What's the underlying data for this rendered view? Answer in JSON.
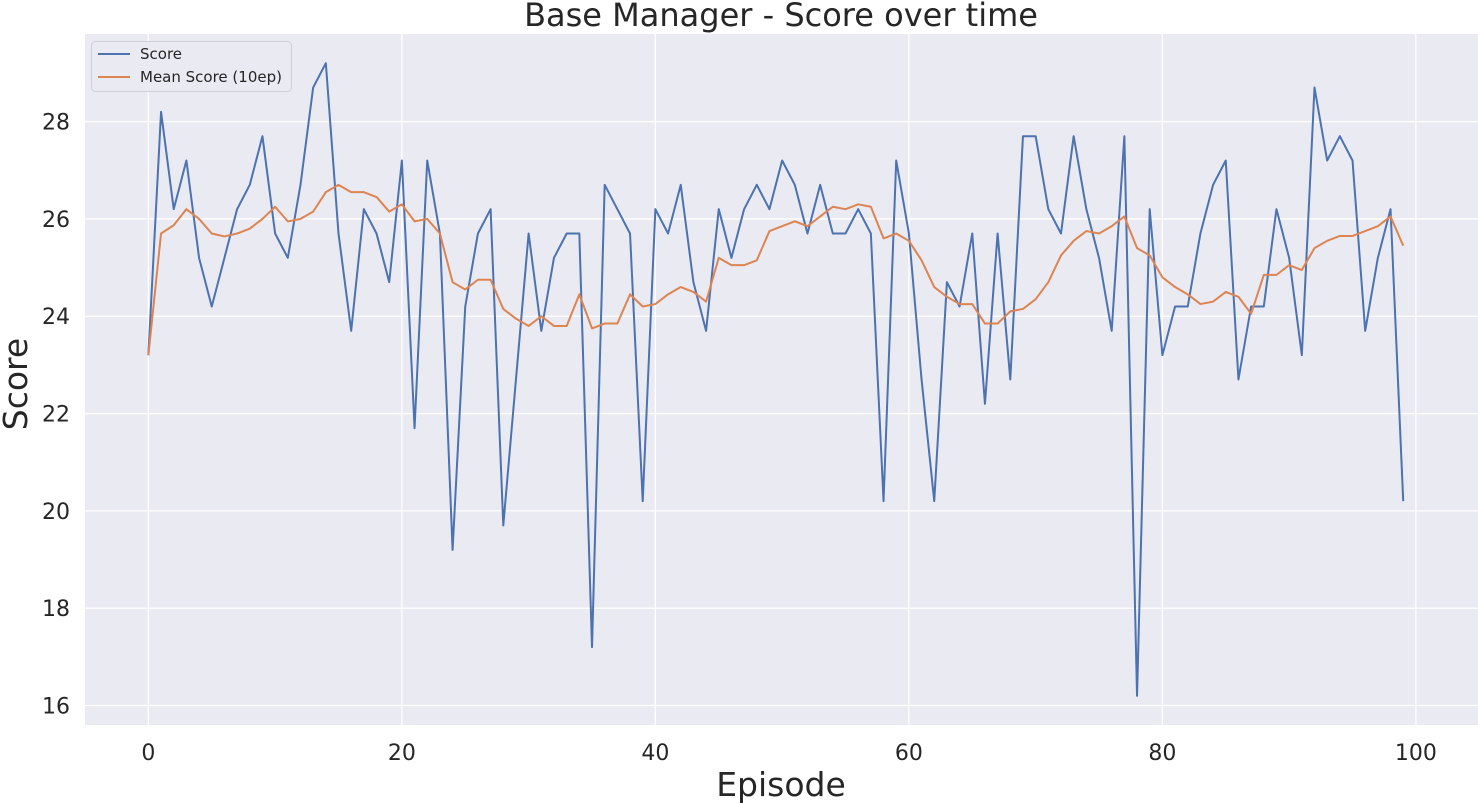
{
  "chart_data": {
    "type": "line",
    "title": "Base Manager - Score over time",
    "xlabel": "Episode",
    "ylabel": "Score",
    "xlim": [
      -5,
      104.9
    ],
    "ylim": [
      15.6,
      29.8
    ],
    "xticks": [
      0,
      20,
      40,
      60,
      80,
      100
    ],
    "yticks": [
      16,
      18,
      20,
      22,
      24,
      26,
      28
    ],
    "grid": true,
    "legend_position": "top-left",
    "background_color": "#EAEAF2",
    "grid_color": "#FFFFFF",
    "x": [
      0,
      1,
      2,
      3,
      4,
      5,
      6,
      7,
      8,
      9,
      10,
      11,
      12,
      13,
      14,
      15,
      16,
      17,
      18,
      19,
      20,
      21,
      22,
      23,
      24,
      25,
      26,
      27,
      28,
      29,
      30,
      31,
      32,
      33,
      34,
      35,
      36,
      37,
      38,
      39,
      40,
      41,
      42,
      43,
      44,
      45,
      46,
      47,
      48,
      49,
      50,
      51,
      52,
      53,
      54,
      55,
      56,
      57,
      58,
      59,
      60,
      61,
      62,
      63,
      64,
      65,
      66,
      67,
      68,
      69,
      70,
      71,
      72,
      73,
      74,
      75,
      76,
      77,
      78,
      79,
      80,
      81,
      82,
      83,
      84,
      85,
      86,
      87,
      88,
      89,
      90,
      91,
      92,
      93,
      94,
      95,
      96,
      97,
      98,
      99
    ],
    "series": [
      {
        "name": "Score",
        "color": "#4C72B0",
        "values": [
          23.2,
          28.2,
          26.2,
          27.2,
          25.2,
          24.2,
          25.2,
          26.2,
          26.7,
          27.7,
          25.7,
          25.2,
          26.7,
          28.7,
          29.2,
          25.7,
          23.7,
          26.2,
          25.7,
          24.7,
          27.2,
          21.7,
          27.2,
          25.7,
          19.2,
          24.2,
          25.7,
          26.2,
          19.7,
          22.7,
          25.7,
          23.7,
          25.2,
          25.7,
          25.7,
          17.2,
          26.7,
          26.2,
          25.7,
          20.2,
          26.2,
          25.7,
          26.7,
          24.7,
          23.7,
          26.2,
          25.2,
          26.2,
          26.7,
          26.2,
          27.2,
          26.7,
          25.7,
          26.7,
          25.7,
          25.7,
          26.2,
          25.7,
          20.2,
          27.2,
          25.7,
          22.7,
          20.2,
          24.7,
          24.2,
          25.7,
          22.2,
          25.7,
          22.7,
          27.7,
          27.7,
          26.2,
          25.7,
          27.7,
          26.2,
          25.2,
          23.7,
          27.7,
          16.2,
          26.2,
          23.2,
          24.2,
          24.2,
          25.7,
          26.7,
          27.2,
          22.7,
          24.2,
          24.2,
          26.2,
          25.2,
          23.2,
          28.7,
          27.2,
          27.7,
          27.2,
          23.7,
          25.2,
          26.2,
          20.2
        ]
      },
      {
        "name": "Mean Score (10ep)",
        "color": "#DD8452",
        "values": [
          23.2,
          25.7,
          25.87,
          26.2,
          26.0,
          25.7,
          25.64,
          25.7,
          25.8,
          26.0,
          26.25,
          25.95,
          26.0,
          26.15,
          26.55,
          26.7,
          26.55,
          26.55,
          26.45,
          26.15,
          26.3,
          25.95,
          26.0,
          25.7,
          24.7,
          24.55,
          24.75,
          24.75,
          24.15,
          23.95,
          23.8,
          24.0,
          23.8,
          23.8,
          24.45,
          23.75,
          23.85,
          23.85,
          24.45,
          24.2,
          24.25,
          24.45,
          24.6,
          24.5,
          24.3,
          25.2,
          25.05,
          25.05,
          25.15,
          25.75,
          25.85,
          25.95,
          25.85,
          26.05,
          26.25,
          26.2,
          26.3,
          26.25,
          25.6,
          25.7,
          25.55,
          25.15,
          24.6,
          24.4,
          24.25,
          24.25,
          23.85,
          23.85,
          24.1,
          24.15,
          24.35,
          24.7,
          25.25,
          25.55,
          25.75,
          25.7,
          25.85,
          26.05,
          25.4,
          25.25,
          24.8,
          24.6,
          24.45,
          24.25,
          24.3,
          24.5,
          24.4,
          24.05,
          24.85,
          24.85,
          25.05,
          24.95,
          25.4,
          25.55,
          25.65,
          25.65,
          25.75,
          25.85,
          26.05,
          25.45
        ]
      }
    ]
  }
}
